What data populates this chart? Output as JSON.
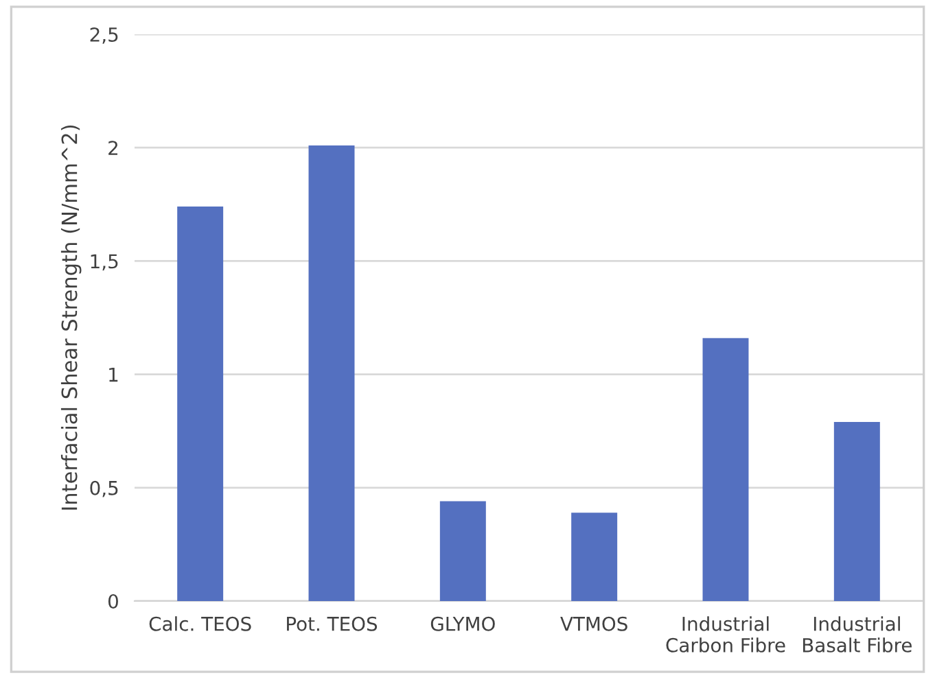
{
  "chart_data": {
    "type": "bar",
    "ylabel": "Interfacial Shear Strength (N/mm^2)",
    "categories": [
      "Calc. TEOS",
      "Pot. TEOS",
      "GLYMO",
      "VTMOS",
      "Industrial\nCarbon Fibre",
      "Industrial\nBasalt Fibre"
    ],
    "values": [
      1.74,
      2.01,
      0.44,
      0.39,
      1.16,
      0.79
    ],
    "color": "#5470c0",
    "ylim": [
      0,
      2.5
    ],
    "yticks": [
      0,
      {
        "value": 0.5,
        "label": "0,5"
      },
      1,
      {
        "value": 1.5,
        "label": "1,5"
      },
      2,
      {
        "value": 2.5,
        "label": "2,5"
      }
    ],
    "grid": "y"
  }
}
